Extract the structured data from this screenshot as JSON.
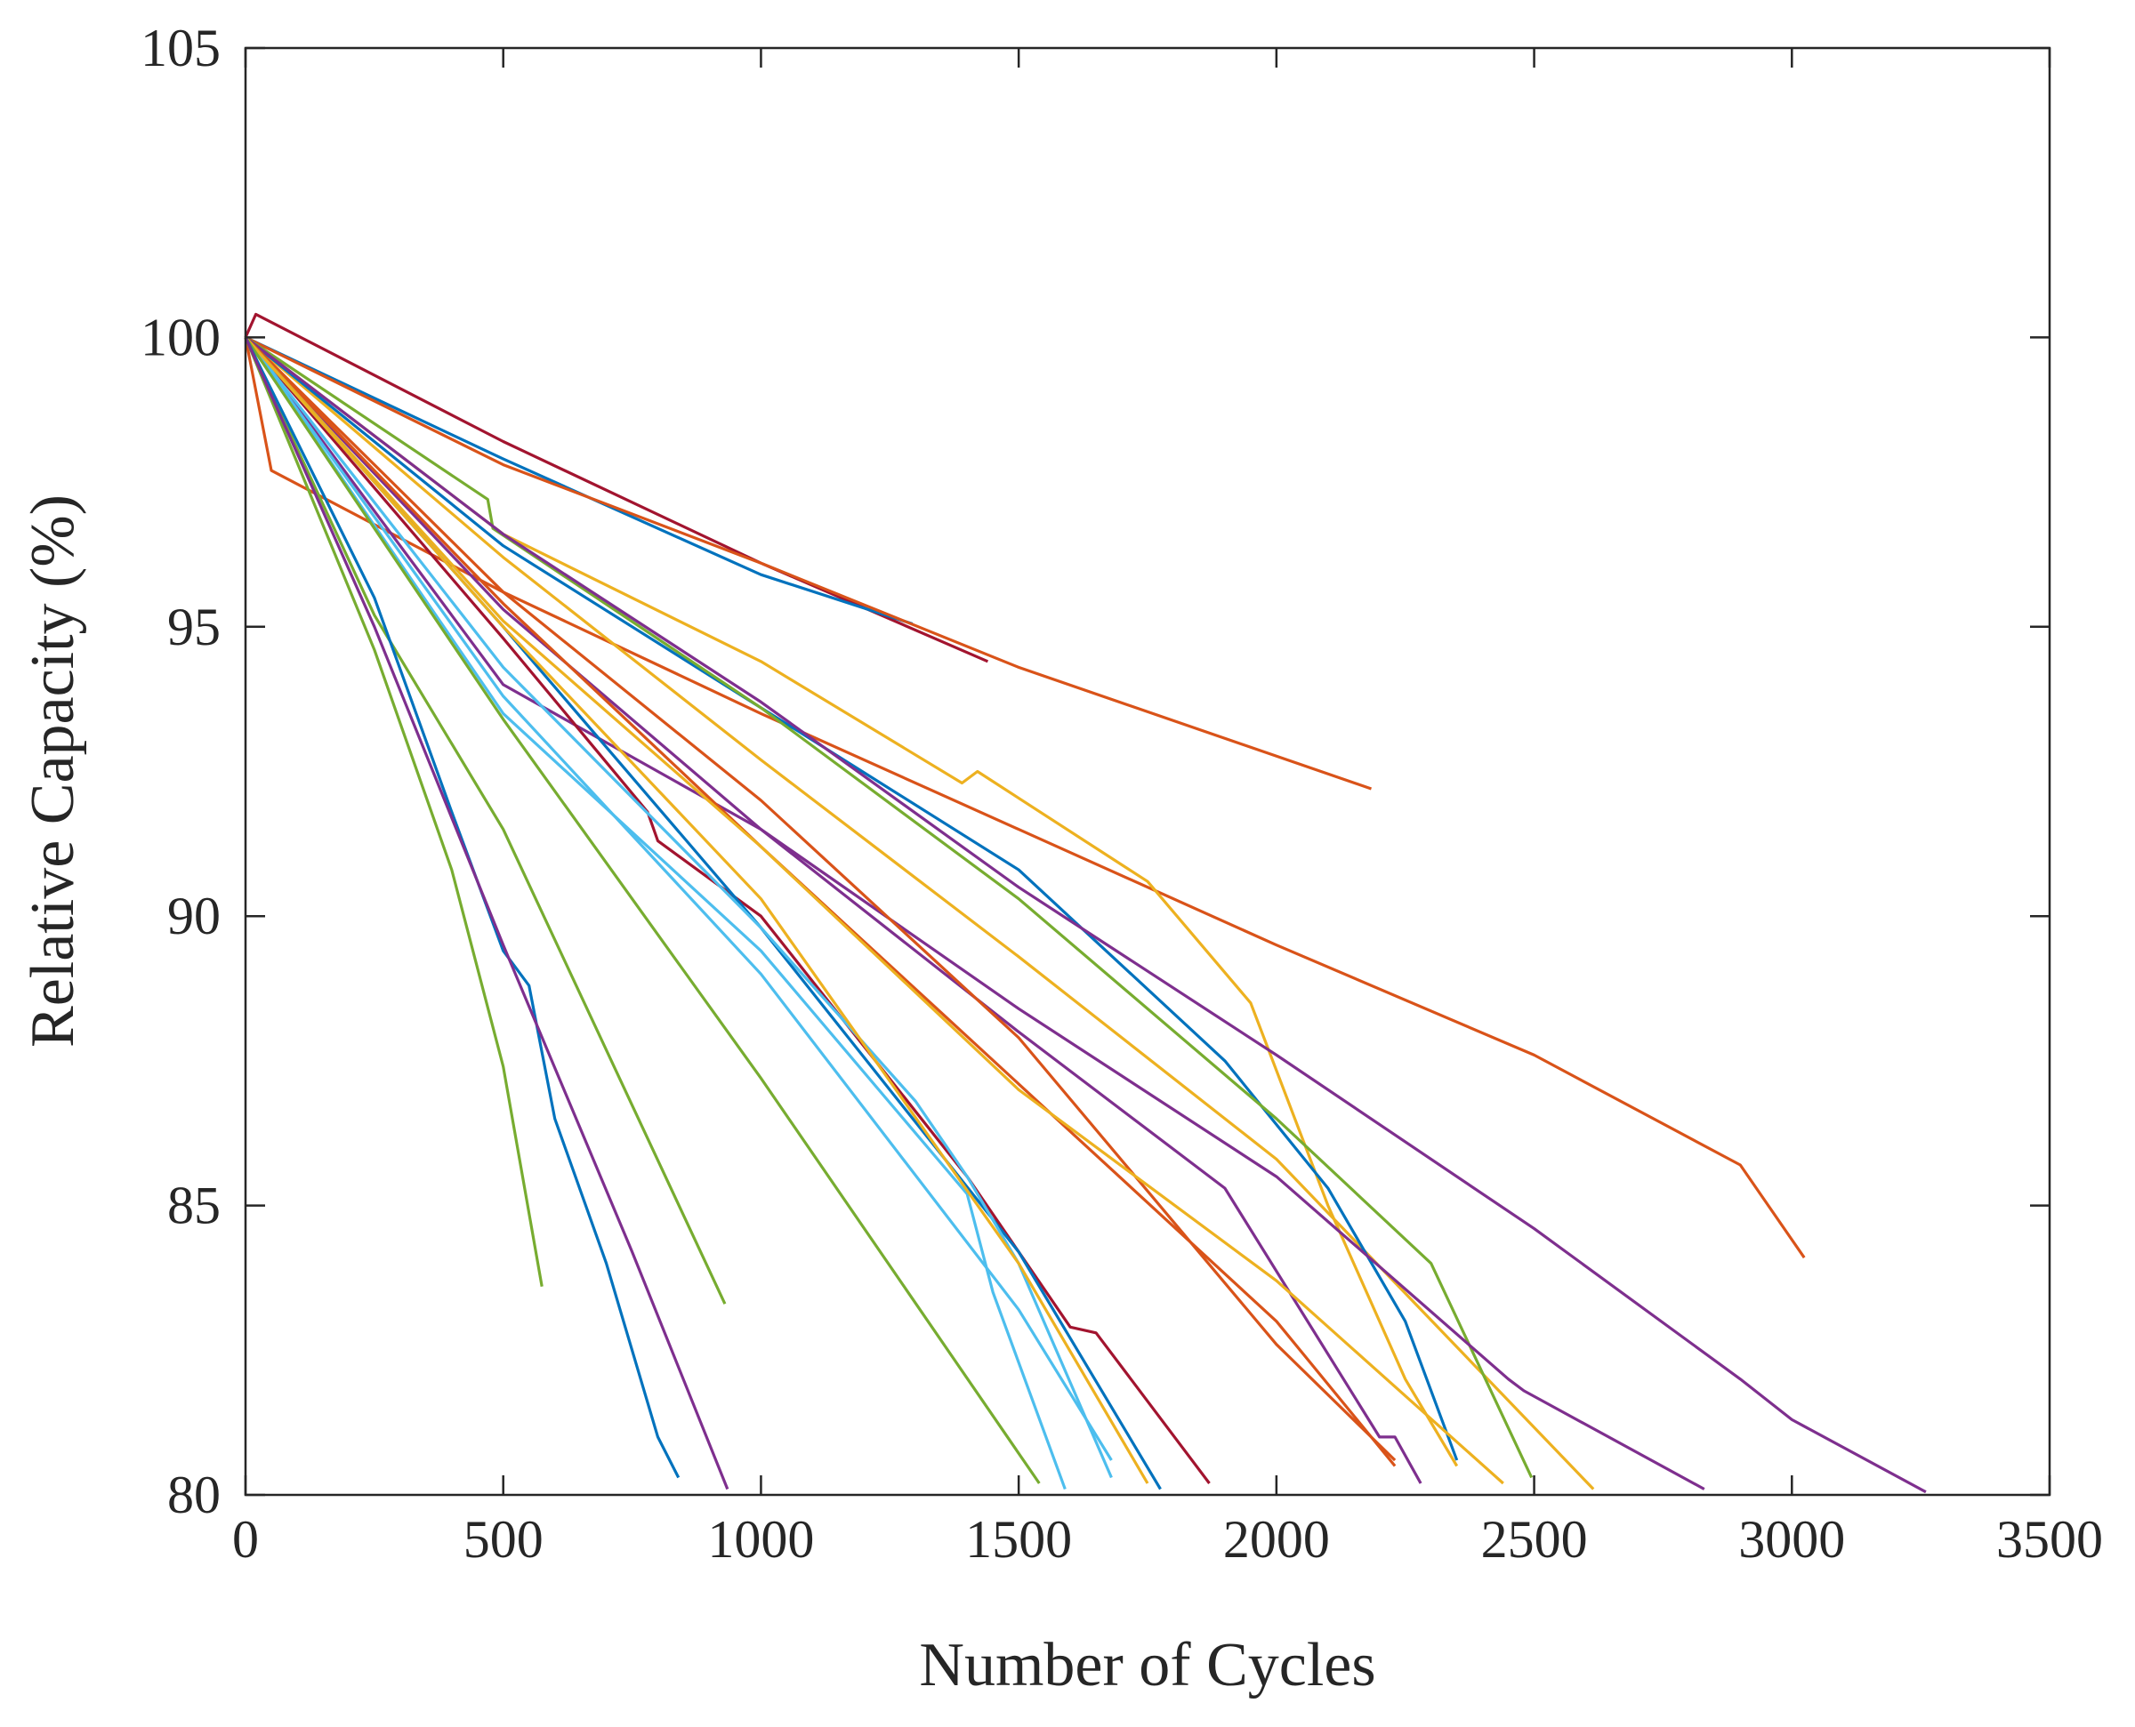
{
  "chart_data": {
    "type": "line",
    "xlabel": "Number of Cycles",
    "ylabel": "Relative Capacity (%)",
    "xlim": [
      0,
      3500
    ],
    "xticks": [
      0,
      500,
      1000,
      1500,
      2000,
      2500,
      3000,
      3500
    ],
    "ylim": [
      80,
      105
    ],
    "yticks": [
      80,
      85,
      90,
      95,
      100,
      105
    ],
    "grid": false,
    "series": [
      {
        "color": "#a2142f",
        "x": [
          0,
          20,
          500,
          1000,
          1440
        ],
        "values": [
          100,
          100.4,
          98.2,
          96.1,
          94.4
        ]
      },
      {
        "color": "#0072bd",
        "x": [
          0,
          500,
          1000,
          1294
        ],
        "values": [
          100,
          97.9,
          95.9,
          95.05
        ]
      },
      {
        "color": "#d95319",
        "x": [
          0,
          500,
          1000,
          1500,
          2184
        ],
        "values": [
          100,
          97.8,
          96.1,
          94.3,
          92.2
        ]
      },
      {
        "color": "#d95319",
        "x": [
          0,
          50,
          500,
          1000,
          1500,
          2000,
          2500,
          2900,
          3024
        ],
        "values": [
          100,
          97.7,
          95.6,
          93.5,
          91.5,
          89.5,
          87.6,
          85.7,
          84.1
        ]
      },
      {
        "color": "#edb120",
        "x": [
          0,
          500,
          1000,
          1390,
          1420,
          1750,
          1950,
          2100,
          2250,
          2350
        ],
        "values": [
          100,
          96.6,
          94.4,
          92.3,
          92.5,
          90.6,
          88.5,
          85,
          82,
          80.5
        ]
      },
      {
        "color": "#edb120",
        "x": [
          0,
          500,
          1000,
          1500,
          2000,
          2615
        ],
        "values": [
          100,
          96.2,
          92.7,
          89.3,
          85.8,
          80.1
        ]
      },
      {
        "color": "#0072bd",
        "x": [
          0,
          500,
          1000,
          1500,
          1900,
          2100,
          2250,
          2350
        ],
        "values": [
          100,
          96.4,
          93.6,
          90.8,
          87.5,
          85.3,
          83,
          80.6
        ]
      },
      {
        "color": "#77ac30",
        "x": [
          0,
          470,
          480,
          1000,
          1500,
          2000,
          2300,
          2495
        ],
        "values": [
          100,
          97.2,
          96.7,
          93.6,
          90.3,
          86.5,
          84,
          80.3
        ]
      },
      {
        "color": "#7e2f8e",
        "x": [
          0,
          500,
          1000,
          1500,
          2000,
          2500,
          2900,
          3000,
          3260
        ],
        "values": [
          100,
          96.6,
          93.7,
          90.5,
          87.6,
          84.6,
          82,
          81.3,
          80.05
        ]
      },
      {
        "color": "#7e2f8e",
        "x": [
          0,
          500,
          1000,
          1500,
          2000,
          2450,
          2480,
          2830
        ],
        "values": [
          100,
          94,
          91.5,
          88.4,
          85.5,
          82,
          81.8,
          80.1
        ]
      },
      {
        "color": "#7e2f8e",
        "x": [
          0,
          500,
          1000,
          1500,
          1900,
          2200,
          2230,
          2280
        ],
        "values": [
          100,
          95.3,
          91.5,
          88,
          85.3,
          81,
          81,
          80.2
        ]
      },
      {
        "color": "#d95319",
        "x": [
          0,
          500,
          1000,
          1500,
          2000,
          2230
        ],
        "values": [
          100,
          95.4,
          91.2,
          87.1,
          83,
          80.5
        ]
      },
      {
        "color": "#d95319",
        "x": [
          0,
          500,
          1000,
          1500,
          2000,
          2230
        ],
        "values": [
          100,
          95.6,
          92,
          87.9,
          82.6,
          80.6
        ]
      },
      {
        "color": "#edb120",
        "x": [
          0,
          500,
          1000,
          1500,
          2000,
          2440
        ],
        "values": [
          100,
          95.1,
          91.2,
          87,
          83.7,
          80.2
        ]
      },
      {
        "color": "#a2142f",
        "x": [
          0,
          500,
          780,
          800,
          1000,
          1400,
          1600,
          1650,
          1870
        ],
        "values": [
          100,
          94.8,
          91.8,
          91.3,
          90,
          85.5,
          82.9,
          82.8,
          80.2
        ]
      },
      {
        "color": "#0072bd",
        "x": [
          0,
          500,
          1000,
          1500,
          1775
        ],
        "values": [
          100,
          95,
          89.8,
          84.2,
          80.1
        ]
      },
      {
        "color": "#4dbeee",
        "x": [
          0,
          500,
          1000,
          1300,
          1400,
          1500,
          1680
        ],
        "values": [
          100,
          94.3,
          89.8,
          86.8,
          85.5,
          84,
          80.3
        ]
      },
      {
        "color": "#4dbeee",
        "x": [
          0,
          500,
          1000,
          1400,
          1450,
          1590
        ],
        "values": [
          100,
          93.5,
          89.4,
          85.2,
          83.5,
          80.1
        ]
      },
      {
        "color": "#4dbeee",
        "x": [
          0,
          500,
          1000,
          1500,
          1680
        ],
        "values": [
          100,
          93.8,
          89,
          83.2,
          80.6
        ]
      },
      {
        "color": "#edb120",
        "x": [
          0,
          500,
          1000,
          1500,
          1750
        ],
        "values": [
          100,
          95,
          90.3,
          84,
          80.2
        ]
      },
      {
        "color": "#77ac30",
        "x": [
          0,
          500,
          1000,
          1540
        ],
        "values": [
          100,
          93.4,
          87.2,
          80.2
        ]
      },
      {
        "color": "#77ac30",
        "x": [
          0,
          250,
          500,
          930
        ],
        "values": [
          100,
          95.2,
          91.5,
          83.3
        ]
      },
      {
        "color": "#77ac30",
        "x": [
          0,
          250,
          400,
          500,
          575
        ],
        "values": [
          100,
          94.6,
          90.8,
          87.4,
          83.6
        ]
      },
      {
        "color": "#0072bd",
        "x": [
          0,
          250,
          400,
          500,
          550,
          600,
          700,
          800,
          840
        ],
        "values": [
          100,
          95.5,
          91.8,
          89.4,
          88.8,
          86.5,
          84,
          81,
          80.3
        ]
      },
      {
        "color": "#7e2f8e",
        "x": [
          0,
          250,
          500,
          750,
          935
        ],
        "values": [
          100,
          95,
          89.5,
          84.2,
          80.1
        ]
      }
    ]
  }
}
